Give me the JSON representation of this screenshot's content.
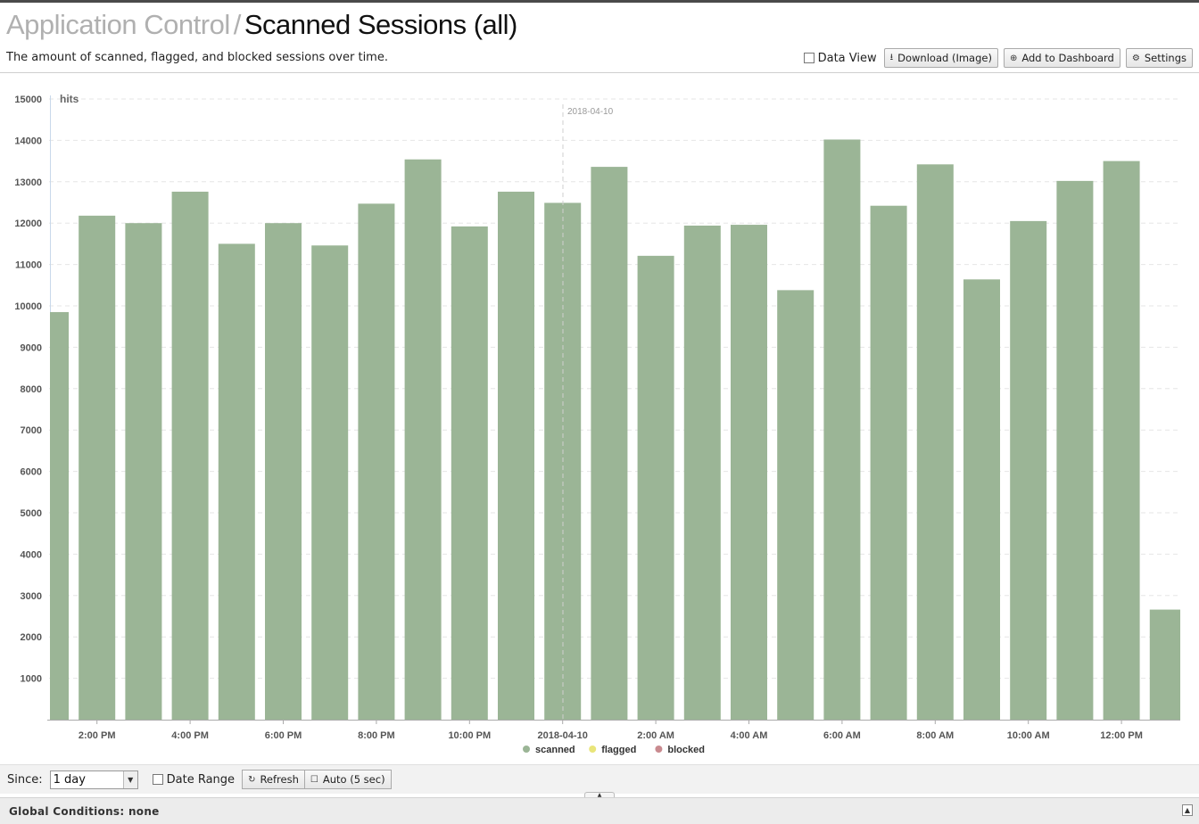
{
  "breadcrumb": {
    "section": "Application Control",
    "separator": "/",
    "title": "Scanned Sessions (all)"
  },
  "description": "The amount of scanned, flagged, and blocked sessions over time.",
  "toolbar": {
    "data_view_label": "Data View",
    "download_label": "Download (Image)",
    "add_dashboard_label": "Add to Dashboard",
    "settings_label": "Settings"
  },
  "controls": {
    "since_label": "Since:",
    "since_value": "1 day",
    "date_range_label": "Date Range",
    "refresh_label": "Refresh",
    "auto_label": "Auto (5 sec)"
  },
  "global_conditions": "Global Conditions: none",
  "chart_data": {
    "type": "bar",
    "ylabel": "hits",
    "ylim": [
      0,
      15000
    ],
    "yticks": [
      1000,
      2000,
      3000,
      4000,
      5000,
      6000,
      7000,
      8000,
      9000,
      10000,
      11000,
      12000,
      13000,
      14000,
      15000
    ],
    "xticks": [
      "2:00 PM",
      "4:00 PM",
      "6:00 PM",
      "8:00 PM",
      "10:00 PM",
      "2018-04-10",
      "2:00 AM",
      "4:00 AM",
      "6:00 AM",
      "8:00 AM",
      "10:00 AM",
      "12:00 PM"
    ],
    "day_marker_label": "2018-04-10",
    "grid": true,
    "legend_position": "bottom-center",
    "series": [
      {
        "name": "scanned",
        "color": "#9bb596",
        "values": [
          9850,
          12180,
          12000,
          12760,
          11500,
          12000,
          11460,
          12470,
          13540,
          11920,
          12760,
          12490,
          13360,
          11210,
          11940,
          11960,
          10380,
          14020,
          12420,
          13420,
          10640,
          12050,
          13020,
          13500,
          2660
        ]
      },
      {
        "name": "flagged",
        "color": "#e9e57a",
        "values": []
      },
      {
        "name": "blocked",
        "color": "#c98a8f",
        "values": []
      }
    ]
  }
}
